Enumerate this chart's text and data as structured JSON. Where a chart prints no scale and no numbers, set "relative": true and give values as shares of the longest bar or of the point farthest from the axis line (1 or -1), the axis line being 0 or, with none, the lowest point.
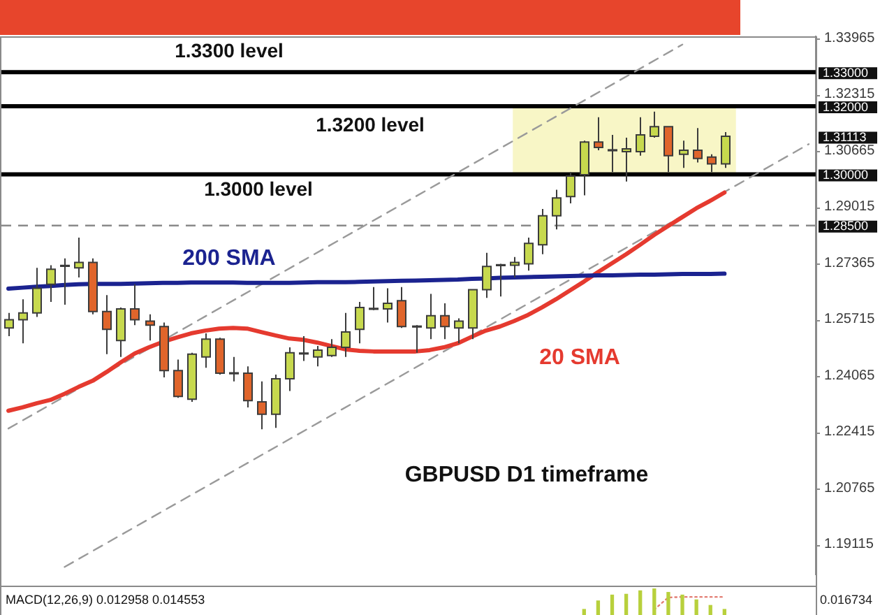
{
  "chart_data": [
    {
      "type": "candlestick",
      "title": "GBPUSD D1 timeframe",
      "categories": [
        null,
        null,
        null,
        null,
        null,
        null,
        null,
        null,
        null,
        null,
        null,
        null,
        null,
        null,
        null,
        null,
        null,
        null,
        null,
        null,
        null,
        null,
        null,
        null,
        null,
        null,
        null,
        null,
        null,
        null,
        null,
        null,
        null,
        null,
        null,
        null,
        null,
        null,
        null,
        null,
        null,
        null,
        null,
        null,
        null,
        null,
        null,
        null,
        null,
        null,
        null,
        null,
        null,
        null,
        null,
        null,
        null,
        null
      ],
      "ohlc": [
        [
          1.255,
          1.2594,
          1.2526,
          1.2574
        ],
        [
          1.2574,
          1.2634,
          1.2505,
          1.2594
        ],
        [
          1.2594,
          1.2726,
          1.2582,
          1.2666
        ],
        [
          1.2678,
          1.2734,
          1.2626,
          1.2722
        ],
        [
          1.273,
          1.2754,
          1.2618,
          1.2734
        ],
        [
          1.2726,
          1.2815,
          1.2698,
          1.2742
        ],
        [
          1.2742,
          1.2754,
          1.259,
          1.2598
        ],
        [
          1.2598,
          1.2646,
          1.2473,
          1.2546
        ],
        [
          1.2513,
          1.261,
          1.2465,
          1.2606
        ],
        [
          1.2606,
          1.2678,
          1.2558,
          1.2574
        ],
        [
          1.257,
          1.259,
          1.2513,
          1.2558
        ],
        [
          1.2554,
          1.2566,
          1.2405,
          1.2425
        ],
        [
          1.2425,
          1.2457,
          1.2345,
          1.2349
        ],
        [
          1.2341,
          1.2477,
          1.2333,
          1.2473
        ],
        [
          1.2465,
          1.2534,
          1.2433,
          1.2517
        ],
        [
          1.2517,
          1.2521,
          1.2413,
          1.2417
        ],
        [
          1.2417,
          1.2465,
          1.2393,
          1.2417
        ],
        [
          1.2417,
          1.2437,
          1.2317,
          1.2337
        ],
        [
          1.2333,
          1.2393,
          1.2253,
          1.2297
        ],
        [
          1.2297,
          1.2413,
          1.2257,
          1.2401
        ],
        [
          1.2401,
          1.2493,
          1.2365,
          1.2477
        ],
        [
          1.2473,
          1.2526,
          1.2453,
          1.2477
        ],
        [
          1.2465,
          1.2497,
          1.2437,
          1.2485
        ],
        [
          1.2469,
          1.2517,
          1.2465,
          1.2493
        ],
        [
          1.2493,
          1.2594,
          1.2465,
          1.2538
        ],
        [
          1.2546,
          1.2626,
          1.2505,
          1.261
        ],
        [
          1.2606,
          1.267,
          1.2602,
          1.2606
        ],
        [
          1.2606,
          1.2666,
          1.2566,
          1.2622
        ],
        [
          1.263,
          1.267,
          1.255,
          1.2554
        ],
        [
          1.2554,
          1.2558,
          1.2477,
          1.2554
        ],
        [
          1.255,
          1.265,
          1.2517,
          1.2586
        ],
        [
          1.2586,
          1.2622,
          1.2517,
          1.2554
        ],
        [
          1.255,
          1.2578,
          1.2505,
          1.257
        ],
        [
          1.255,
          1.2662,
          1.2517,
          1.2662
        ],
        [
          1.2662,
          1.277,
          1.2638,
          1.273
        ],
        [
          1.2734,
          1.2738,
          1.2642,
          1.2734
        ],
        [
          1.2734,
          1.2758,
          1.2698,
          1.2742
        ],
        [
          1.2738,
          1.2815,
          1.2718,
          1.2798
        ],
        [
          1.2794,
          1.2899,
          1.2766,
          1.2879
        ],
        [
          1.2879,
          1.2955,
          1.2839,
          1.2931
        ],
        [
          1.2935,
          1.3007,
          1.2915,
          1.2995
        ],
        [
          1.2999,
          1.3099,
          1.2939,
          1.3095
        ],
        [
          1.3095,
          1.3168,
          1.3071,
          1.3079
        ],
        [
          1.3071,
          1.3116,
          1.3007,
          1.3071
        ],
        [
          1.3067,
          1.3108,
          1.2979,
          1.3075
        ],
        [
          1.3067,
          1.3168,
          1.3055,
          1.3116
        ],
        [
          1.3112,
          1.3184,
          1.3108,
          1.314
        ],
        [
          1.314,
          1.314,
          1.3007,
          1.3055
        ],
        [
          1.3059,
          1.3099,
          1.3019,
          1.3071
        ],
        [
          1.3071,
          1.3136,
          1.3035,
          1.3047
        ],
        [
          1.3051,
          1.3059,
          1.3007,
          1.3031
        ],
        [
          1.3031,
          1.3124,
          1.3019,
          1.3112
        ],
        null,
        null,
        null,
        null,
        null,
        null
      ],
      "colors": [
        "#c7d94e",
        "#c7d94e",
        "#c7d94e",
        "#c7d94e",
        "#3c3c3c",
        "#c7d94e",
        "#e0652b",
        "#e0652b",
        "#c7d94e",
        "#e0652b",
        "#e0652b",
        "#e0652b",
        "#e0652b",
        "#c7d94e",
        "#c7d94e",
        "#e0652b",
        "#3c3c3c",
        "#e0652b",
        "#e0652b",
        "#c7d94e",
        "#c7d94e",
        "#3c3c3c",
        "#c7d94e",
        "#c7d94e",
        "#c7d94e",
        "#c7d94e",
        "#3c3c3c",
        "#c7d94e",
        "#e0652b",
        "#3c3c3c",
        "#c7d94e",
        "#e0652b",
        "#c7d94e",
        "#c7d94e",
        "#c7d94e",
        "#3c3c3c",
        "#c7d94e",
        "#c7d94e",
        "#c7d94e",
        "#c7d94e",
        "#c7d94e",
        "#c7d94e",
        "#e0652b",
        "#3c3c3c",
        "#c7d94e",
        "#c7d94e",
        "#c7d94e",
        "#e0652b",
        "#c7d94e",
        "#e0652b",
        "#e0652b",
        "#c7d94e",
        null,
        null,
        null,
        null,
        null,
        null
      ],
      "series": [
        {
          "type": "line",
          "name": "200 SMA",
          "color": "#1b2390",
          "values": [
            1.2665,
            1.2668,
            1.2671,
            1.2673,
            1.2676,
            1.2678,
            1.2679,
            1.2679,
            1.2679,
            1.268,
            1.2681,
            1.2682,
            1.2682,
            1.2683,
            1.2683,
            1.2683,
            1.2683,
            1.2682,
            1.2682,
            1.2682,
            1.2682,
            1.2683,
            1.2684,
            1.2684,
            1.2684,
            1.2685,
            1.2686,
            1.2687,
            1.2688,
            1.2689,
            1.269,
            1.2691,
            1.2692,
            1.2694,
            1.2695,
            1.2697,
            1.2698,
            1.2699,
            1.27,
            1.2701,
            1.2702,
            1.2703,
            1.2704,
            1.2704,
            1.2705,
            1.2706,
            1.2706,
            1.2707,
            1.2708,
            1.2708,
            1.2708,
            1.2709,
            null,
            null,
            null,
            null,
            null,
            null
          ]
        },
        {
          "type": "line",
          "name": "20 SMA",
          "color": "#e53a2f",
          "values": [
            1.2307,
            1.2317,
            1.2329,
            1.2339,
            1.2357,
            1.2377,
            1.2395,
            1.2421,
            1.2449,
            1.2475,
            1.2493,
            1.2509,
            1.2522,
            1.2534,
            1.2542,
            1.2548,
            1.255,
            1.2548,
            1.2538,
            1.2528,
            1.2519,
            1.2515,
            1.2507,
            1.2497,
            1.2487,
            1.2483,
            1.2481,
            1.2481,
            1.2481,
            1.2481,
            1.2485,
            1.2493,
            1.2505,
            1.2524,
            1.2542,
            1.2554,
            1.257,
            1.2588,
            1.261,
            1.2634,
            1.266,
            1.2686,
            1.2714,
            1.274,
            1.2766,
            1.2794,
            1.2823,
            1.2849,
            1.2875,
            1.2901,
            1.2923,
            1.2947,
            null,
            null,
            null,
            null,
            null,
            null
          ]
        },
        {
          "type": "line",
          "color": "#9a9a9a",
          "line_style": "dashed",
          "values": [
            1.2255,
            null,
            null,
            null,
            null,
            null,
            null,
            null,
            null,
            null,
            null,
            null,
            null,
            null,
            null,
            null,
            null,
            null,
            null,
            null,
            null,
            null,
            null,
            null,
            null,
            null,
            null,
            null,
            null,
            null,
            null,
            null,
            null,
            null,
            null,
            null,
            null,
            null,
            null,
            null,
            null,
            null,
            null,
            null,
            null,
            null,
            null,
            null,
            1.3381,
            null,
            null,
            null,
            null,
            null,
            null,
            null,
            null,
            null
          ]
        },
        {
          "type": "line",
          "color": "#9a9a9a",
          "line_style": "dashed",
          "values": [
            null,
            null,
            null,
            null,
            1.1849,
            null,
            null,
            null,
            null,
            null,
            null,
            null,
            null,
            null,
            null,
            null,
            null,
            null,
            null,
            null,
            null,
            null,
            null,
            null,
            null,
            null,
            null,
            null,
            null,
            null,
            null,
            null,
            null,
            null,
            null,
            null,
            null,
            null,
            null,
            null,
            null,
            null,
            null,
            null,
            null,
            null,
            null,
            null,
            null,
            null,
            null,
            null,
            null,
            null,
            null,
            null,
            null,
            1.3089
          ]
        }
      ],
      "ylim": [
        1.1827,
        1.3405
      ],
      "yticks": [
        1.19115,
        1.20765,
        1.22415,
        1.24065,
        1.25715,
        1.27365,
        1.29015,
        1.30665,
        1.32315,
        1.33965
      ],
      "ref_lines": [
        {
          "axis": "y",
          "value": 1.33,
          "label": "1.33000",
          "color": "#000000"
        },
        {
          "axis": "y",
          "value": 1.32,
          "label": "1.32000",
          "color": "#000000"
        },
        {
          "axis": "y",
          "value": 1.3,
          "label": "1.30000",
          "color": "#000000"
        },
        {
          "axis": "y",
          "value": 1.285,
          "label": "1.28500",
          "color": "#8a8a8a",
          "line_style": "dashed"
        }
      ],
      "bands": [
        {
          "axis": "y",
          "from": 1.3,
          "to": 1.32,
          "color": "#f8f6c6"
        }
      ],
      "annotations": [
        "1.3300 level",
        "1.3200 level",
        "1.3000 level",
        "1.31113"
      ]
    },
    {
      "type": "bar",
      "title": "MACD(12,26,9) 0.012958 0.014553",
      "relative": true,
      "categories": [
        null,
        null,
        null,
        null,
        null,
        null,
        null,
        null,
        null,
        null,
        null,
        null,
        null,
        null,
        null,
        null,
        null,
        null,
        null,
        null,
        null,
        null,
        null,
        null,
        null,
        null,
        null,
        null,
        null,
        null,
        null,
        null,
        null,
        null,
        null,
        null,
        null,
        null,
        null,
        null,
        null,
        null,
        null,
        null,
        null,
        null,
        null,
        null,
        null,
        null,
        null,
        null,
        null,
        null,
        null,
        null,
        null,
        null
      ],
      "series": [
        {
          "type": "bar",
          "color": "#b8d03c",
          "values": [
            null,
            null,
            null,
            null,
            null,
            null,
            null,
            null,
            null,
            null,
            null,
            null,
            null,
            null,
            null,
            null,
            null,
            null,
            null,
            null,
            null,
            null,
            null,
            null,
            null,
            null,
            null,
            null,
            null,
            null,
            null,
            null,
            null,
            null,
            null,
            null,
            null,
            null,
            null,
            null,
            null,
            0.21,
            0.53,
            0.75,
            0.78,
            0.91,
            1,
            0.85,
            0.75,
            0.57,
            0.36,
            0.21,
            null,
            null,
            null,
            null,
            null,
            null
          ]
        },
        {
          "type": "line",
          "color": "#e27d73",
          "line_style": "dotted",
          "values": [
            null,
            null,
            null,
            null,
            null,
            null,
            null,
            null,
            null,
            null,
            null,
            null,
            null,
            null,
            null,
            null,
            null,
            null,
            null,
            null,
            null,
            null,
            null,
            null,
            null,
            null,
            null,
            null,
            null,
            null,
            null,
            null,
            null,
            null,
            null,
            null,
            null,
            null,
            null,
            null,
            null,
            null,
            null,
            null,
            null,
            null,
            0.21,
            0.66,
            0.68,
            0.68,
            0.68,
            0.68,
            null,
            null,
            null,
            null,
            null,
            null
          ]
        }
      ],
      "annotations": [
        "0.016734"
      ]
    }
  ]
}
